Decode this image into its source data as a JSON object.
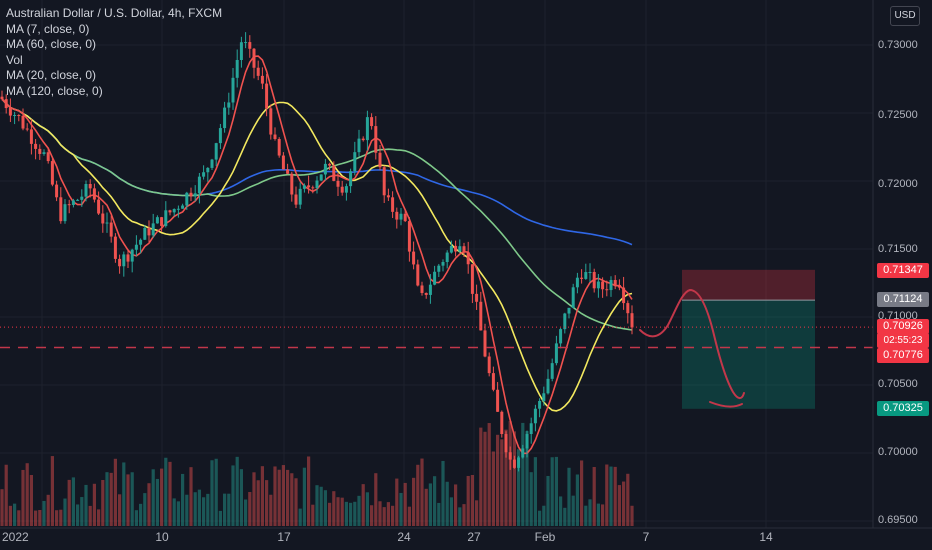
{
  "header": {
    "title": "Australian Dollar / U.S. Dollar, 4h, FXCM",
    "currency_button": "USD"
  },
  "legend": [
    "MA (7, close, 0)",
    "MA (60, close, 0)",
    "Vol",
    "MA (20, close, 0)",
    "MA (120, close, 0)"
  ],
  "colors": {
    "background": "#131722",
    "bull": "#26a69a",
    "bear": "#ef5350",
    "ma7": "#f0524f",
    "ma20": "#f2e85f",
    "ma60": "#7fc98a",
    "ma120": "#2f67e6",
    "drawing": "#c2374a"
  },
  "badges": {
    "stop_loss": "0.71347",
    "entry": "0.71124",
    "last": "0.70926",
    "countdown": "02:55:23",
    "level": "0.70776",
    "take_profit": "0.70325"
  },
  "chart_data": {
    "type": "candlestick",
    "symbol": "AUDUSD",
    "timeframe": "4h",
    "y_axis": {
      "ticks": [
        "0.73000",
        "0.72500",
        "0.72000",
        "0.71500",
        "0.71000",
        "0.70500",
        "0.70000",
        "0.69500"
      ],
      "range": [
        0.6945,
        0.7325
      ]
    },
    "x_axis": {
      "ticks": [
        "2022",
        "10",
        "17",
        "24",
        "27",
        "Feb",
        "7",
        "14"
      ]
    },
    "price_path": [
      [
        "Jan 3",
        0.7255
      ],
      [
        "Jan 4",
        0.724
      ],
      [
        "Jan 5",
        0.72
      ],
      [
        "Jan 6",
        0.7178
      ],
      [
        "Jan 7",
        0.7205
      ],
      [
        "Jan 10",
        0.7165
      ],
      [
        "Jan 11",
        0.7185
      ],
      [
        "Jan 12",
        0.723
      ],
      [
        "Jan 13",
        0.7285
      ],
      [
        "Jan 14",
        0.724
      ],
      [
        "Jan 15",
        0.7195
      ],
      [
        "Jan 17",
        0.7205
      ],
      [
        "Jan 18",
        0.7185
      ],
      [
        "Jan 19",
        0.72
      ],
      [
        "Jan 20",
        0.725
      ],
      [
        "Jan 21",
        0.7185
      ],
      [
        "Jan 24",
        0.7175
      ],
      [
        "Jan 25",
        0.7145
      ],
      [
        "Jan 26",
        0.713
      ],
      [
        "Jan 27",
        0.7065
      ],
      [
        "Jan 28",
        0.7
      ],
      [
        "Jan 31",
        0.7035
      ],
      [
        "Feb 1",
        0.708
      ],
      [
        "Feb 2",
        0.7135
      ],
      [
        "Feb 3",
        0.7125
      ],
      [
        "Feb 4",
        0.7093
      ]
    ],
    "moving_averages": [
      {
        "name": "MA (7, close, 0)",
        "color": "#f0524f"
      },
      {
        "name": "MA (20, close, 0)",
        "color": "#f2e85f"
      },
      {
        "name": "MA (60, close, 0)",
        "color": "#7fc98a"
      },
      {
        "name": "MA (120, close, 0)",
        "color": "#2f67e6"
      }
    ],
    "position": {
      "side": "short",
      "entry": 0.71124,
      "stop_loss": 0.71347,
      "take_profit": 0.70325
    },
    "horizontal_level": 0.70776,
    "last_price": 0.70926
  }
}
